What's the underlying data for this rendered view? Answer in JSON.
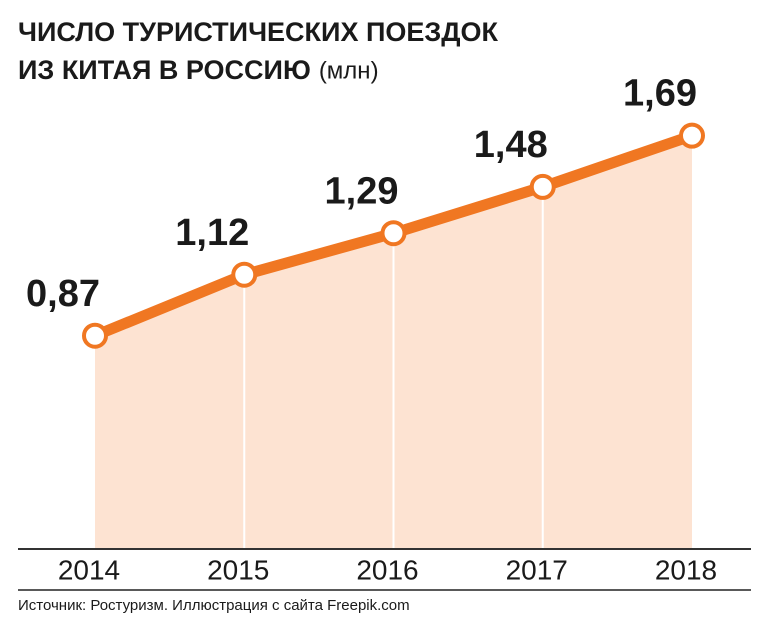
{
  "chart_data": {
    "type": "line",
    "title": [
      "ЧИСЛО ТУРИСТИЧЕСКИХ ПОЕЗДОК",
      "ИЗ КИТАЯ В РОССИЮ"
    ],
    "unit": "(млн)",
    "categories": [
      "2014",
      "2015",
      "2016",
      "2017",
      "2018"
    ],
    "values": [
      0.87,
      1.12,
      1.29,
      1.48,
      1.69
    ],
    "value_labels": [
      "0,87",
      "1,12",
      "1,29",
      "1,48",
      "1,69"
    ],
    "color": "#f07722",
    "area_color": "#fde3d2",
    "ylim": [
      0,
      2
    ],
    "source": "Источник: Ростуризм. Иллюстрация с сайта Freepik.com"
  }
}
